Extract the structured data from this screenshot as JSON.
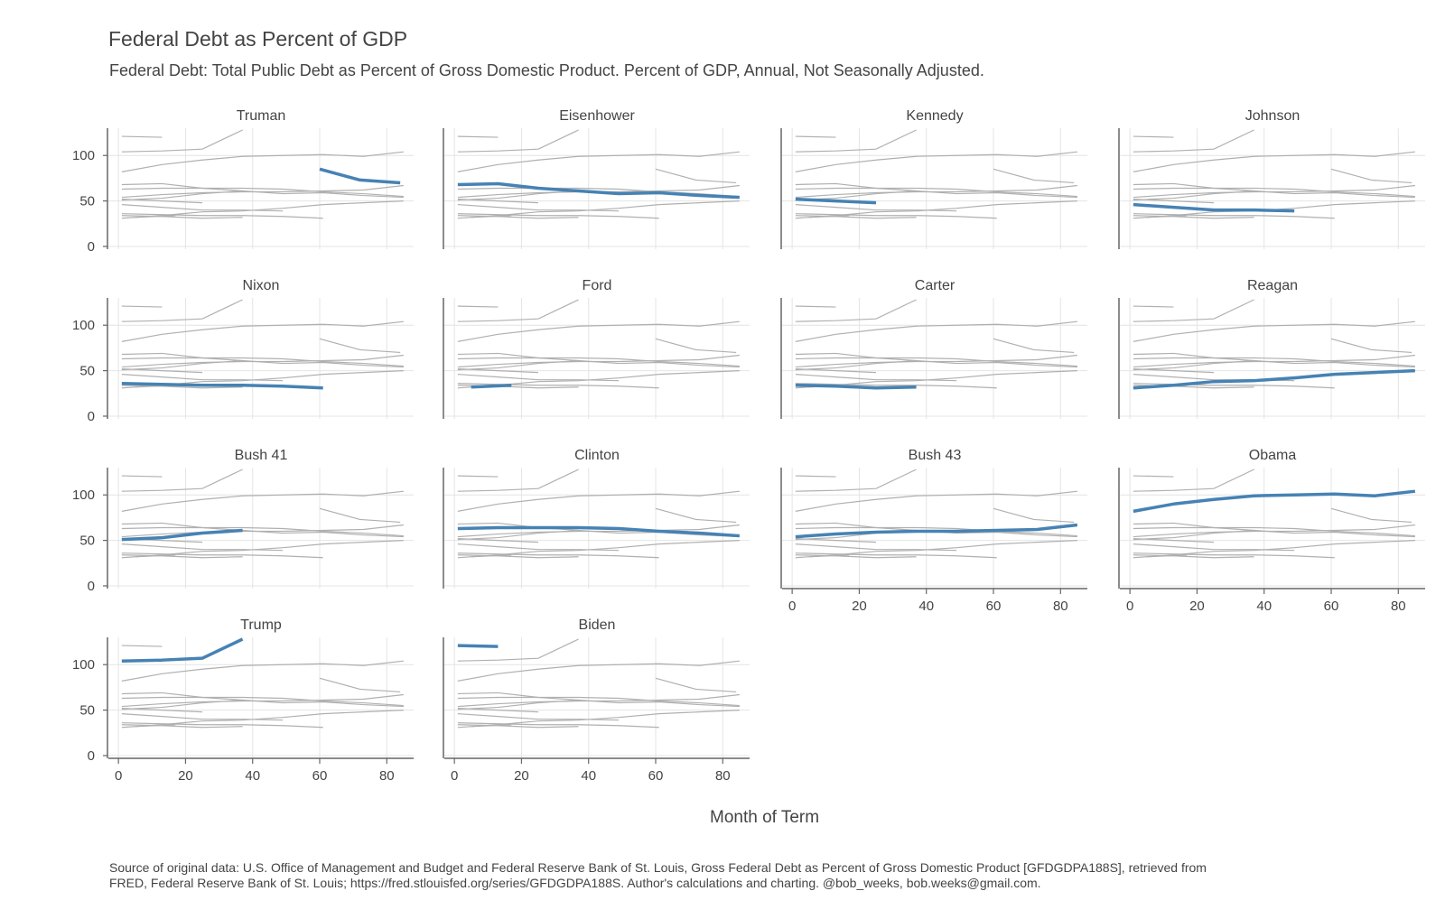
{
  "title": "Federal Debt as Percent of GDP",
  "subtitle": "Federal Debt: Total Public Debt as Percent of Gross Domestic Product. Percent of GDP, Annual, Not Seasonally Adjusted.",
  "source_note_line1": "Source of original data: U.S. Office of Management and Budget and Federal Reserve Bank of St. Louis, Gross Federal Debt as Percent of Gross Domestic Product [GFDGDPA188S], retrieved from",
  "source_note_line2": "FRED, Federal Reserve Bank of St. Louis; https://fred.stlouisfed.org/series/GFDGDPA188S. Author's calculations and charting. @bob_weeks, bob.weeks@gmail.com.",
  "colors": {
    "highlight": "#4682b4",
    "background_lines": "#b0b0b0",
    "grid": "#e4e4e4",
    "axis": "#666666"
  },
  "chart_data": {
    "type": "line",
    "layout": "small-multiples",
    "xlabel": "Month of Term",
    "ylabel": "",
    "xlim": [
      -3,
      88
    ],
    "ylim": [
      -3,
      130
    ],
    "x_ticks": [
      0,
      20,
      40,
      60,
      80
    ],
    "y_ticks": [
      0,
      50,
      100
    ],
    "grid": true,
    "series": [
      {
        "name": "Truman",
        "x": [
          60,
          72,
          84
        ],
        "values": [
          85,
          73,
          70
        ]
      },
      {
        "name": "Eisenhower",
        "x": [
          1,
          13,
          25,
          37,
          49,
          61,
          73,
          85
        ],
        "values": [
          68,
          69,
          64,
          61,
          58,
          59,
          56,
          54
        ]
      },
      {
        "name": "Kennedy",
        "x": [
          1,
          13,
          25
        ],
        "values": [
          52,
          50,
          48
        ]
      },
      {
        "name": "Johnson",
        "x": [
          1,
          13,
          25,
          37,
          49
        ],
        "values": [
          46,
          43,
          40,
          40,
          39
        ]
      },
      {
        "name": "Nixon",
        "x": [
          1,
          13,
          25,
          37,
          49,
          61
        ],
        "values": [
          36,
          35,
          34,
          34,
          33,
          31
        ]
      },
      {
        "name": "Ford",
        "x": [
          5,
          17
        ],
        "values": [
          32,
          34
        ]
      },
      {
        "name": "Carter",
        "x": [
          1,
          13,
          25,
          37
        ],
        "values": [
          34,
          33,
          31,
          32
        ]
      },
      {
        "name": "Reagan",
        "x": [
          1,
          13,
          25,
          37,
          49,
          61,
          73,
          85
        ],
        "values": [
          31,
          34,
          38,
          39,
          42,
          46,
          48,
          50
        ]
      },
      {
        "name": "Bush 41",
        "x": [
          1,
          13,
          25,
          37
        ],
        "values": [
          51,
          53,
          58,
          61
        ]
      },
      {
        "name": "Clinton",
        "x": [
          1,
          13,
          25,
          37,
          49,
          61,
          73,
          85
        ],
        "values": [
          63,
          64,
          64,
          64,
          63,
          60,
          58,
          55
        ]
      },
      {
        "name": "Bush 43",
        "x": [
          1,
          13,
          25,
          37,
          49,
          61,
          73,
          85
        ],
        "values": [
          54,
          57,
          59,
          60,
          60,
          61,
          62,
          67
        ]
      },
      {
        "name": "Obama",
        "x": [
          1,
          13,
          25,
          37,
          49,
          61,
          73,
          85
        ],
        "values": [
          82,
          90,
          95,
          99,
          100,
          101,
          99,
          104
        ]
      },
      {
        "name": "Trump",
        "x": [
          1,
          13,
          25,
          37
        ],
        "values": [
          104,
          105,
          107,
          128
        ]
      },
      {
        "name": "Biden",
        "x": [
          1,
          13
        ],
        "values": [
          121,
          120
        ]
      }
    ]
  }
}
